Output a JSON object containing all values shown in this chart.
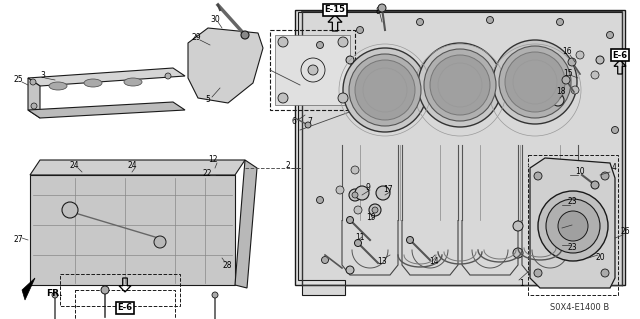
{
  "bg_color": "#f0f0f0",
  "part_number": "S0X4-E1400 B",
  "line_color": "#1a1a1a",
  "gray_fill": "#d0d0d0",
  "light_gray": "#e8e8e8",
  "dark_gray": "#888888",
  "figsize": [
    6.4,
    3.19
  ],
  "dpi": 100
}
